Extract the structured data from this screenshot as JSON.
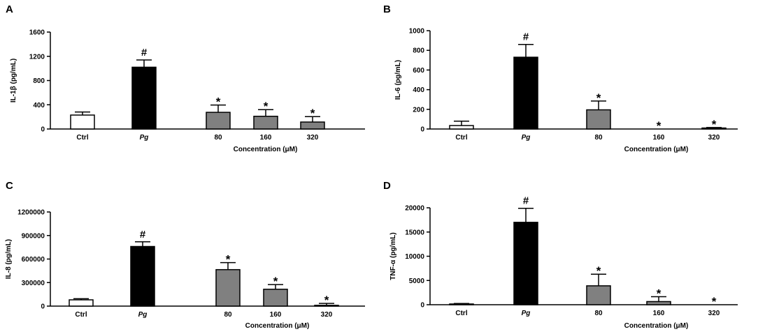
{
  "colors": {
    "ctrl": "#ffffff",
    "pg": "#000000",
    "treatment": "#808080",
    "axis": "#000000"
  },
  "chart_data": [
    {
      "panel": "A",
      "type": "bar",
      "categories": [
        "Ctrl",
        "Pg",
        "80",
        "160",
        "320"
      ],
      "values": [
        230,
        1020,
        275,
        210,
        115
      ],
      "errors": [
        50,
        120,
        120,
        110,
        90
      ],
      "significance": [
        "",
        "#",
        "*",
        "*",
        "*"
      ],
      "yticks": [
        0,
        400,
        800,
        1200,
        1600
      ],
      "ytick_labels": [
        "0",
        "400",
        "800",
        "1200",
        "1600"
      ],
      "ylim": [
        0,
        1600
      ],
      "ylabel": "IL-1β (pg/mL)",
      "xlabel": "Concentration (μM)"
    },
    {
      "panel": "B",
      "type": "bar",
      "categories": [
        "Ctrl",
        "Pg",
        "80",
        "160",
        "320"
      ],
      "values": [
        35,
        730,
        195,
        0,
        10
      ],
      "errors": [
        45,
        130,
        90,
        0,
        5
      ],
      "significance": [
        "",
        "#",
        "*",
        "*",
        "*"
      ],
      "yticks": [
        0,
        200,
        400,
        600,
        800,
        1000
      ],
      "ytick_labels": [
        "0",
        "200",
        "400",
        "600",
        "800",
        "1000"
      ],
      "ylim": [
        0,
        1000
      ],
      "ylabel": "IL-6 (pg/mL)",
      "xlabel": "Concentration (μM)"
    },
    {
      "panel": "C",
      "type": "bar",
      "categories": [
        "Ctrl",
        "Pg",
        "80",
        "160",
        "320"
      ],
      "values": [
        80000,
        760000,
        465000,
        215000,
        10000
      ],
      "errors": [
        15000,
        60000,
        90000,
        60000,
        25000
      ],
      "significance": [
        "",
        "#",
        "*",
        "*",
        "*"
      ],
      "yticks": [
        0,
        300000,
        600000,
        900000,
        1200000
      ],
      "ytick_labels": [
        "0",
        "300000",
        "600000",
        "900000",
        "1200000"
      ],
      "ylim": [
        0,
        1200000
      ],
      "ylabel": "IL-8 (pg/mL)",
      "xlabel": "Concentration (μM)"
    },
    {
      "panel": "D",
      "type": "bar",
      "categories": [
        "Ctrl",
        "Pg",
        "80",
        "160",
        "320"
      ],
      "values": [
        150,
        17000,
        3900,
        650,
        0
      ],
      "errors": [
        100,
        2900,
        2400,
        1000,
        0
      ],
      "significance": [
        "",
        "#",
        "*",
        "*",
        "*"
      ],
      "yticks": [
        0,
        5000,
        10000,
        15000,
        20000
      ],
      "ytick_labels": [
        "0",
        "5000",
        "10000",
        "15000",
        "20000"
      ],
      "ylim": [
        0,
        20000
      ],
      "ylabel": "TNF-α (pg/mL)",
      "xlabel": "Concentration (μM)"
    }
  ]
}
